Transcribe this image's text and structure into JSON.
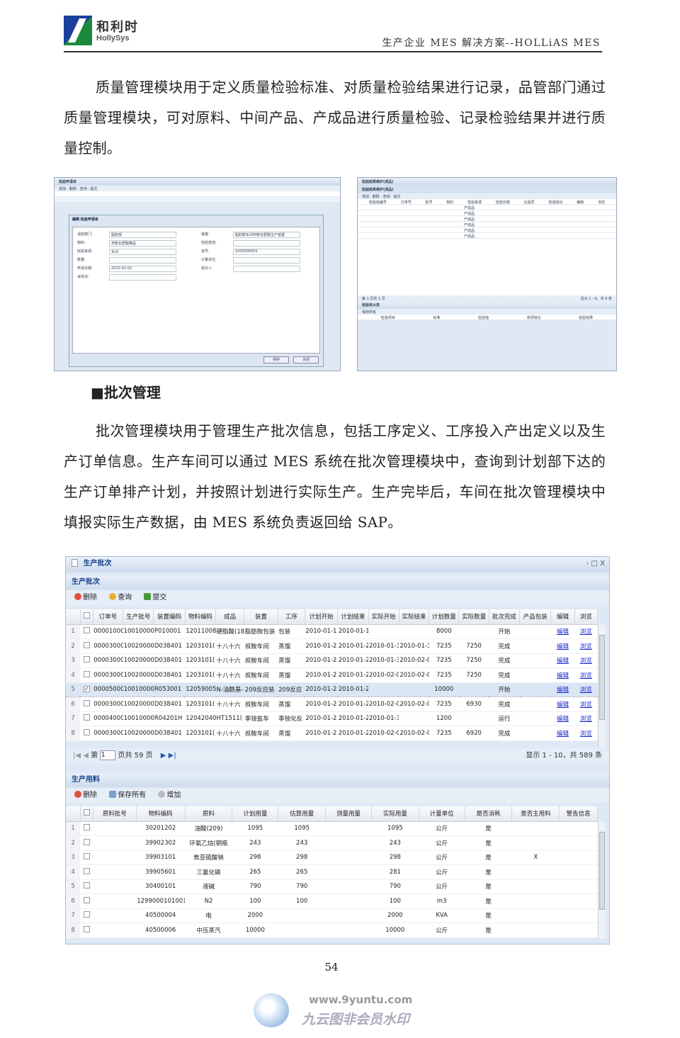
{
  "header": {
    "logo_cn": "和利时",
    "logo_en": "HollySys",
    "title": "生产企业 MES 解决方案--HOLLiAS MES"
  },
  "paragraph1": "质量管理模块用于定义质量检验标准、对质量检验结果进行记录，品管部门通过质量管理模块，可对原料、中间产品、产成品进行质量检验、记录检验结果并进行质量控制。",
  "screenshot_left": {
    "title": "检验申请单",
    "toolbar": [
      "增加",
      "删除",
      "查询",
      "提交"
    ],
    "dialog_title": "编辑 检验申请单",
    "fields": [
      {
        "label": "请检部门:",
        "value": "脂肪部"
      },
      {
        "label": "物料:",
        "value": "芳胺化肥酸精品"
      },
      {
        "label": "检验来源:",
        "value": "车间"
      },
      {
        "label": "数量:",
        "value": ""
      },
      {
        "label": "申请日期:",
        "value": "2010-02-02"
      },
      {
        "label": "采样点:",
        "value": ""
      },
      {
        "label": "装置:",
        "value": "脂肪胺车间芳胺化肥酸生产装置"
      },
      {
        "label": "检验规范:",
        "value": ""
      },
      {
        "label": "批号:",
        "value": "1003000001"
      },
      {
        "label": "计量单位:",
        "value": ""
      },
      {
        "label": "经办人:",
        "value": ""
      }
    ],
    "save": "保存",
    "close": "关闭"
  },
  "screenshot_right": {
    "title": "检验结果维护(成品)",
    "toolbar": [
      "增加",
      "删除",
      "查询",
      "提交"
    ],
    "columns": [
      "检验批编号",
      "订单号",
      "批号",
      "物料",
      "检验来源",
      "检验日期",
      "化验员",
      "检验结论",
      "编辑",
      "浏览"
    ],
    "rows": [
      "产成品",
      "产成品",
      "产成品",
      "产成品",
      "产成品",
      "产成品"
    ],
    "pager": "第 1 页共 1 页",
    "pager_info": "显示 1 - 6，共 6 条",
    "sub_title": "检验单从表",
    "sub_toolbar": "保存所有",
    "sub_columns": [
      "检验项目",
      "标准",
      "检验值",
      "单项结论",
      "检验结果"
    ]
  },
  "section_title": "■批次管理",
  "paragraph2": "批次管理模块用于管理生产批次信息，包括工序定义、工序投入产出定义以及生产订单信息。生产车间可以通过 MES 系统在批次管理模块中，查询到计划部下达的生产订单排产计划，并按照计划进行实际生产。生产完毕后，车间在批次管理模块中填报实际生产数据，由 MES 系统负责返回给 SAP。",
  "app": {
    "window_title": "生产批次",
    "window_controls": [
      "-",
      "□",
      "X"
    ],
    "batch_panel": {
      "title": "生产批次",
      "toolbar": [
        "删除",
        "查询",
        "提交"
      ],
      "columns": [
        "订单号",
        "生产批号",
        "装置编码",
        "物料编码",
        "成品",
        "装置",
        "工序",
        "计划开始",
        "计划结束",
        "实际开始",
        "实际结束",
        "计划数量",
        "实际数量",
        "批次完成",
        "产品包装",
        "编辑",
        "浏览"
      ],
      "rows": [
        {
          "n": "1",
          "checked": false,
          "cells": [
            "00001000(",
            "10010000(",
            "P010001",
            "12011008(",
            "硬脂酸(18",
            "脂肪胺包装",
            "包装",
            "2010-01-1",
            "2010-01-1",
            "",
            "",
            "8000",
            "",
            "开始",
            "",
            "编辑",
            "浏览"
          ]
        },
        {
          "n": "2",
          "checked": false,
          "cells": [
            "00003000(",
            "10020000(",
            "D038401",
            "1203101(",
            "十八十六",
            "叔胺车间",
            "蒸馏",
            "2010-01-2",
            "2010-01-2",
            "2010-01-3",
            "2010-01-3",
            "7235",
            "7250",
            "完成",
            "",
            "编辑",
            "浏览"
          ]
        },
        {
          "n": "3",
          "checked": false,
          "cells": [
            "00003000(",
            "10020000(",
            "D038401",
            "1203101(",
            "十八十六",
            "叔胺车间",
            "蒸馏",
            "2010-01-2",
            "2010-01-2",
            "2010-01-3",
            "2010-02-0",
            "7235",
            "7250",
            "完成",
            "",
            "编辑",
            "浏览"
          ]
        },
        {
          "n": "4",
          "checked": false,
          "cells": [
            "00003000(",
            "10020000(",
            "D038401",
            "1203101(",
            "十八十六",
            "叔胺车间",
            "蒸馏",
            "2010-01-2",
            "2010-01-2",
            "2010-02-0",
            "2010-02-0",
            "7235",
            "7250",
            "完成",
            "",
            "编辑",
            "浏览"
          ]
        },
        {
          "n": "5",
          "checked": true,
          "cells": [
            "00005000(",
            "10010000(",
            "R053001",
            "12059005(",
            "N-油酰基-",
            "209反应装",
            "209反应",
            "2010-01-2",
            "2010-01-2",
            "",
            "",
            "10000",
            "",
            "开始",
            "",
            "编辑",
            "浏览"
          ]
        },
        {
          "n": "6",
          "checked": false,
          "cells": [
            "00003000(",
            "10020000(",
            "D038401",
            "1203101(",
            "十八十六",
            "叔胺车间",
            "蒸馏",
            "2010-01-2",
            "2010-01-2",
            "2010-02-0",
            "2010-02-0",
            "7235",
            "6930",
            "完成",
            "",
            "编辑",
            "浏览"
          ]
        },
        {
          "n": "7",
          "checked": false,
          "cells": [
            "00004000(",
            "10010000(",
            "R04201H",
            "12042040(",
            "HT1511(",
            "季铵盐车",
            "季铵化反",
            "2010-01-2",
            "2010-01-2",
            "2010-01-3",
            "",
            "1200",
            "",
            "运行",
            "",
            "编辑",
            "浏览"
          ]
        },
        {
          "n": "8",
          "checked": false,
          "cells": [
            "00003000(",
            "10020000(",
            "D038401",
            "1203101(",
            "十八十六",
            "叔胺车间",
            "蒸馏",
            "2010-01-2",
            "2010-01-2",
            "2010-02-0",
            "2010-02-0",
            "7235",
            "6920",
            "完成",
            "",
            "编辑",
            "浏览"
          ]
        }
      ],
      "pager": {
        "page_label": "第",
        "page": "1",
        "total_label": "页共 59 页",
        "info": "显示 1 - 10，共 589 条"
      }
    },
    "material_panel": {
      "title": "生产用料",
      "toolbar": [
        "删除",
        "保存所有",
        "增加"
      ],
      "columns": [
        "原料批号",
        "物料编码",
        "原料",
        "计划用量",
        "估算用量",
        "测量用量",
        "实际用量",
        "计量单位",
        "是否消耗",
        "是否主用料",
        "警告信息"
      ],
      "rows": [
        {
          "n": "1",
          "cells": [
            "",
            "30201202",
            "油酸(209)",
            "1095",
            "1095",
            "",
            "1095",
            "公斤",
            "是",
            "",
            ""
          ]
        },
        {
          "n": "2",
          "cells": [
            "",
            "39902302",
            "环氧乙烷(钢瓶",
            "243",
            "243",
            "",
            "243",
            "公斤",
            "是",
            "",
            ""
          ]
        },
        {
          "n": "3",
          "cells": [
            "",
            "39903101",
            "焦亚硫酸钠",
            "298",
            "298",
            "",
            "298",
            "公斤",
            "是",
            "X",
            ""
          ]
        },
        {
          "n": "4",
          "cells": [
            "",
            "39905601",
            "三氯化磷",
            "265",
            "265",
            "",
            "281",
            "公斤",
            "是",
            "",
            ""
          ]
        },
        {
          "n": "5",
          "cells": [
            "",
            "30400101",
            "液碱",
            "790",
            "790",
            "",
            "790",
            "公斤",
            "是",
            "",
            ""
          ]
        },
        {
          "n": "6",
          "cells": [
            "",
            "1299000101001",
            "N2",
            "100",
            "100",
            "",
            "100",
            "m3",
            "是",
            "",
            ""
          ]
        },
        {
          "n": "7",
          "cells": [
            "",
            "40500004",
            "电",
            "2000",
            "",
            "",
            "2000",
            "KVA",
            "是",
            "",
            ""
          ]
        },
        {
          "n": "8",
          "cells": [
            "",
            "40500006",
            "中压蒸汽",
            "10000",
            "",
            "",
            "10000",
            "公斤",
            "是",
            "",
            ""
          ]
        }
      ]
    }
  },
  "page_number": "54",
  "watermark": {
    "url": "www.9yuntu.com",
    "text": "九云图非会员水印"
  },
  "colors": {
    "link": "#1a2ad0",
    "panel_title": "#15428b",
    "delete_icon": "#e0503a",
    "search_icon": "#e8b030",
    "submit_icon": "#4a9a3a"
  }
}
